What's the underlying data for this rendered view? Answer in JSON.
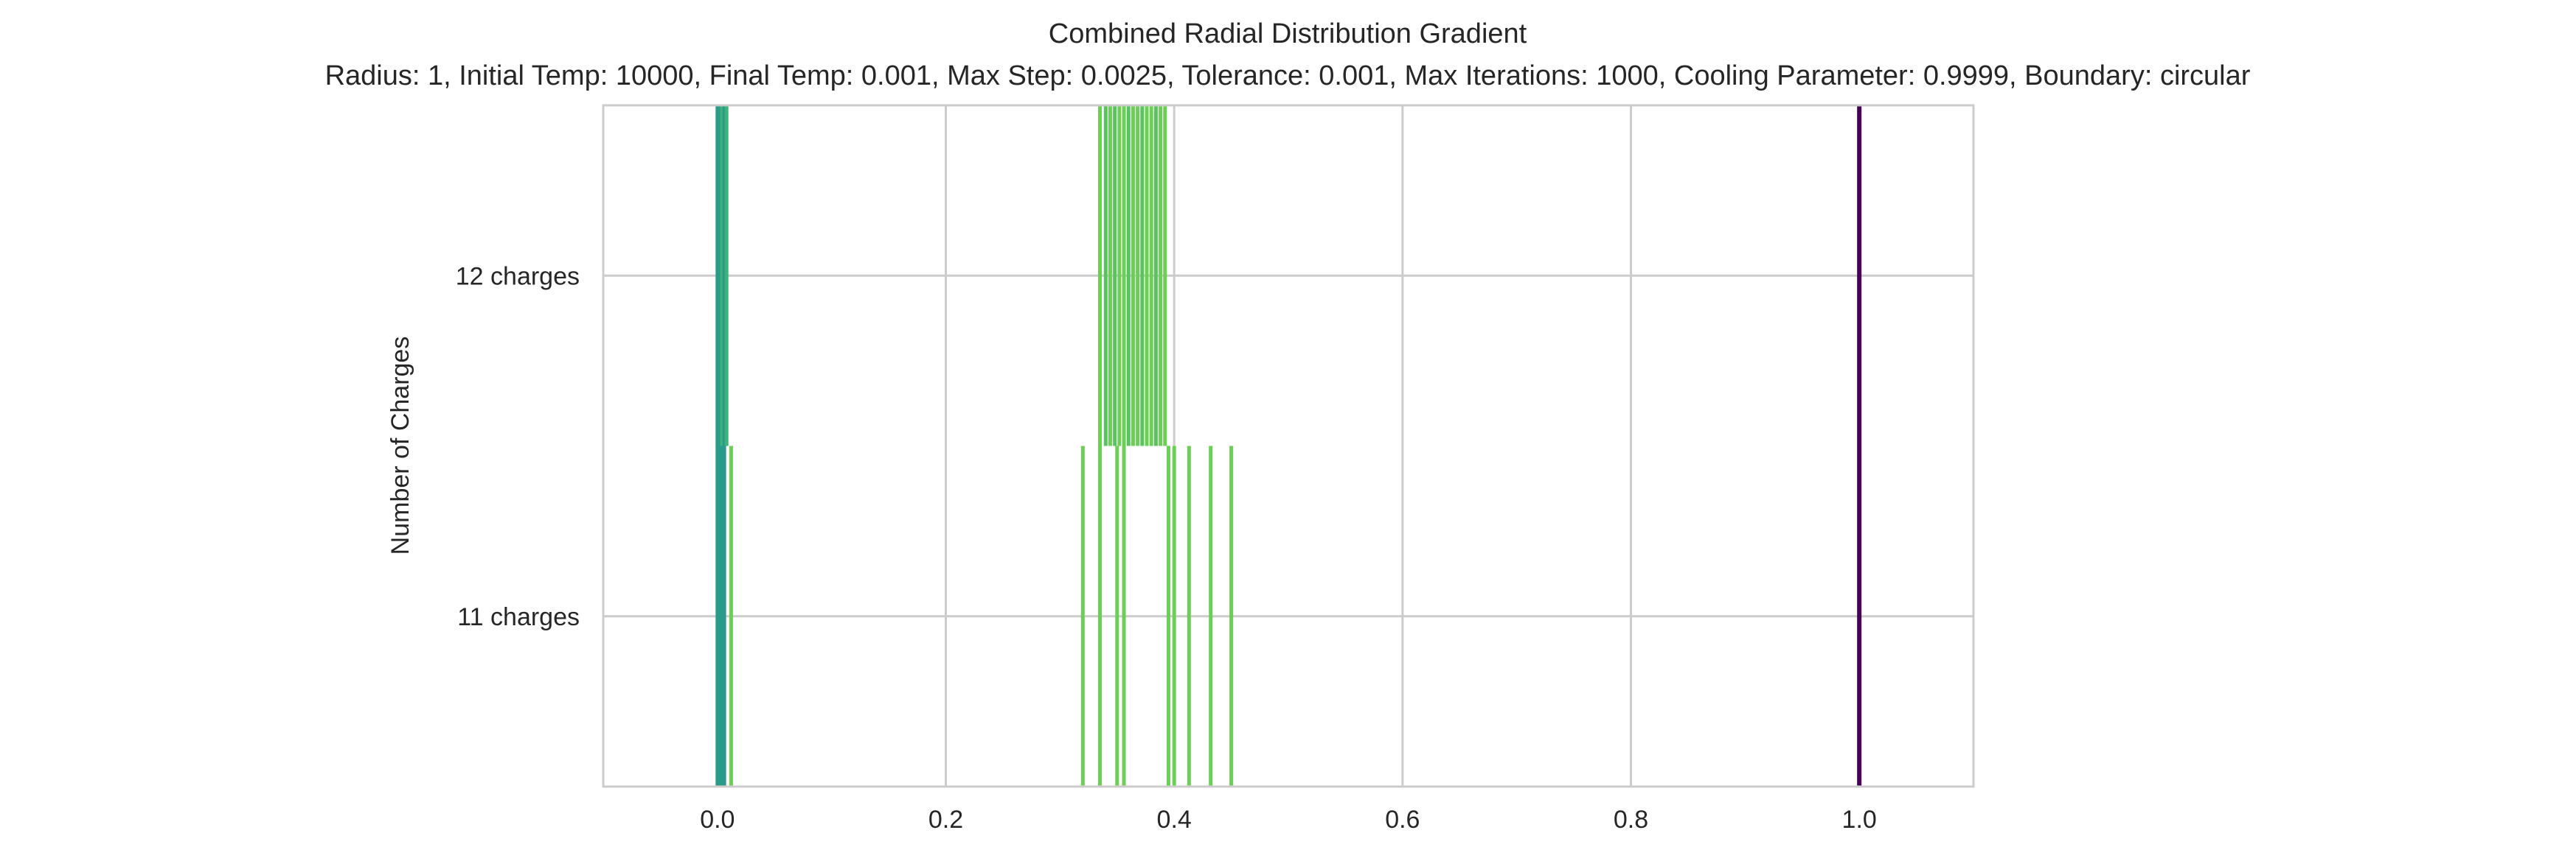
{
  "chart_data": {
    "type": "barcode",
    "title": "Combined Radial Distribution Gradient",
    "subtitle": "Radius: 1, Initial Temp: 10000, Final Temp: 0.001, Max Step: 0.0025, Tolerance: 0.001, Max Iterations: 1000, Cooling Parameter: 0.9999, Boundary: circular",
    "xlabel": "",
    "ylabel": "Number of Charges",
    "xlim": [
      -0.1,
      1.1
    ],
    "ylim": [
      -0.5,
      1.5
    ],
    "xticks": [
      0.0,
      0.2,
      0.4,
      0.6,
      0.8,
      1.0
    ],
    "xtick_labels": [
      "0.0",
      "0.2",
      "0.4",
      "0.6",
      "0.8",
      "1.0"
    ],
    "categories": [
      "11 charges",
      "12 charges"
    ],
    "grid": true,
    "series": [
      {
        "category": "11 charges",
        "radial_positions": [
          0.0,
          0.002,
          0.004,
          0.006,
          0.012,
          0.32,
          0.335,
          0.35,
          0.356,
          0.395,
          0.4,
          0.413,
          0.432,
          0.45
        ],
        "colors": [
          "#2a9a8a",
          "#2a9a8a",
          "#2a9a8a",
          "#2a9a8a",
          "#6ccf55",
          "#6ccf55",
          "#6ccf55",
          "#6ccf55",
          "#6ccf55",
          "#6ccf55",
          "#6ccf55",
          "#6ccf55",
          "#6ccf55",
          "#6ccf55"
        ],
        "outer_marker": {
          "position": 1.0,
          "color": "#440154"
        }
      },
      {
        "category": "12 charges",
        "radial_positions": [
          0.0,
          0.002,
          0.004,
          0.006,
          0.008,
          0.335,
          0.34,
          0.344,
          0.348,
          0.352,
          0.356,
          0.36,
          0.364,
          0.368,
          0.372,
          0.376,
          0.38,
          0.384,
          0.388,
          0.392
        ],
        "colors": [
          "#2a9a8a",
          "#2a9a8a",
          "#3fb47a",
          "#2a9a8a",
          "#3fb47a",
          "#6ccf55",
          "#58c360",
          "#6ccf55",
          "#58c360",
          "#6ccf55",
          "#6ccf55",
          "#58c360",
          "#6ccf55",
          "#6ccf55",
          "#58c360",
          "#6ccf55",
          "#6ccf55",
          "#58c360",
          "#6ccf55",
          "#6ccf55"
        ],
        "outer_marker": {
          "position": 1.0,
          "color": "#440154"
        }
      }
    ]
  }
}
